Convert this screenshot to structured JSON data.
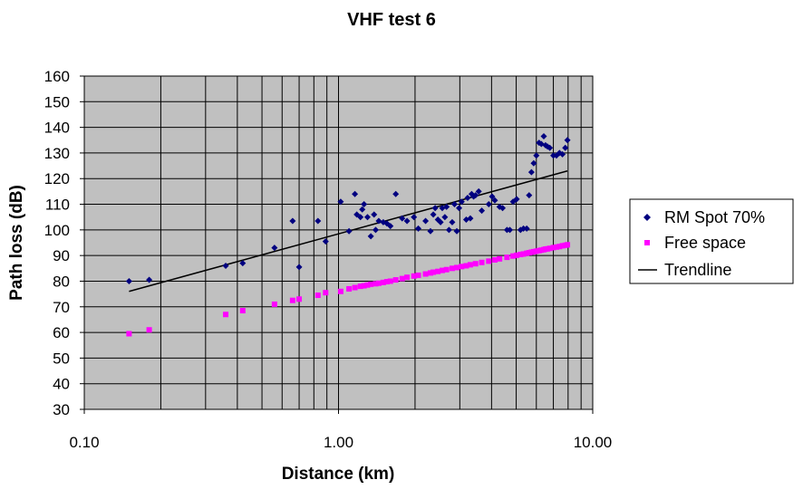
{
  "chart_data": {
    "type": "scatter",
    "title": "VHF test 6",
    "xlabel": "Distance (km)",
    "ylabel": "Path loss (dB)",
    "x_scale": "log",
    "xlim": [
      0.1,
      10
    ],
    "ylim": [
      30,
      160
    ],
    "x_tick_labels": [
      "0.10",
      "1.00",
      "10.00"
    ],
    "x_ticks": [
      0.1,
      1,
      10
    ],
    "y_ticks": [
      30,
      40,
      50,
      60,
      70,
      80,
      90,
      100,
      110,
      120,
      130,
      140,
      150,
      160
    ],
    "grid": true,
    "legend_position": "right",
    "colors": {
      "plot_background": "#c0c0c0",
      "grid": "#000000",
      "rm_spot": "#000080",
      "free_space": "#ff00ff",
      "trendline": "#000000"
    },
    "series": [
      {
        "name": "RM Spot 70%",
        "marker": "diamond",
        "points": [
          [
            0.15,
            80
          ],
          [
            0.18,
            80.5
          ],
          [
            0.36,
            86
          ],
          [
            0.42,
            87
          ],
          [
            0.56,
            93
          ],
          [
            0.66,
            103.5
          ],
          [
            0.7,
            85.5
          ],
          [
            0.83,
            103.5
          ],
          [
            0.89,
            95.5
          ],
          [
            1.02,
            111
          ],
          [
            1.1,
            99.5
          ],
          [
            1.16,
            114
          ],
          [
            1.18,
            106
          ],
          [
            1.22,
            105
          ],
          [
            1.24,
            108
          ],
          [
            1.26,
            110
          ],
          [
            1.3,
            105
          ],
          [
            1.34,
            97.5
          ],
          [
            1.38,
            106
          ],
          [
            1.4,
            100
          ],
          [
            1.44,
            103.5
          ],
          [
            1.5,
            103
          ],
          [
            1.55,
            102.5
          ],
          [
            1.6,
            101.5
          ],
          [
            1.68,
            114
          ],
          [
            1.78,
            104.5
          ],
          [
            1.86,
            103.5
          ],
          [
            1.98,
            105
          ],
          [
            2.06,
            100.5
          ],
          [
            2.2,
            103.5
          ],
          [
            2.3,
            99.5
          ],
          [
            2.36,
            106
          ],
          [
            2.4,
            108.5
          ],
          [
            2.46,
            104
          ],
          [
            2.52,
            103
          ],
          [
            2.56,
            108.5
          ],
          [
            2.62,
            105
          ],
          [
            2.66,
            109
          ],
          [
            2.72,
            100
          ],
          [
            2.8,
            103
          ],
          [
            2.86,
            110
          ],
          [
            2.92,
            99.5
          ],
          [
            2.98,
            108.5
          ],
          [
            3.05,
            111
          ],
          [
            3.18,
            104
          ],
          [
            3.22,
            112.5
          ],
          [
            3.3,
            104.5
          ],
          [
            3.34,
            114
          ],
          [
            3.4,
            113
          ],
          [
            3.46,
            113.5
          ],
          [
            3.56,
            115
          ],
          [
            3.66,
            107.5
          ],
          [
            3.9,
            110
          ],
          [
            4.02,
            113
          ],
          [
            4.12,
            111.5
          ],
          [
            4.3,
            109
          ],
          [
            4.42,
            108.5
          ],
          [
            4.6,
            100
          ],
          [
            4.72,
            100
          ],
          [
            4.86,
            111
          ],
          [
            5.02,
            112
          ],
          [
            5.2,
            100
          ],
          [
            5.34,
            100.5
          ],
          [
            5.5,
            100.5
          ],
          [
            5.62,
            113.5
          ],
          [
            5.74,
            122.5
          ],
          [
            5.86,
            126
          ],
          [
            6.0,
            129
          ],
          [
            6.15,
            134
          ],
          [
            6.28,
            133.5
          ],
          [
            6.42,
            136.5
          ],
          [
            6.52,
            133
          ],
          [
            6.64,
            132.5
          ],
          [
            6.78,
            132
          ],
          [
            7.0,
            129
          ],
          [
            7.2,
            129
          ],
          [
            7.4,
            130
          ],
          [
            7.6,
            129.5
          ],
          [
            7.8,
            132
          ],
          [
            7.95,
            135
          ]
        ]
      },
      {
        "name": "Free space",
        "marker": "square",
        "points": [
          [
            0.15,
            59.5
          ],
          [
            0.18,
            61
          ],
          [
            0.36,
            67
          ],
          [
            0.42,
            68.5
          ],
          [
            0.56,
            71
          ],
          [
            0.66,
            72.5
          ],
          [
            0.7,
            73
          ],
          [
            0.83,
            74.5
          ],
          [
            0.89,
            75.5
          ],
          [
            1.02,
            76
          ],
          [
            1.1,
            77
          ],
          [
            1.16,
            77.5
          ],
          [
            1.22,
            78
          ],
          [
            1.26,
            78.2
          ],
          [
            1.3,
            78.5
          ],
          [
            1.34,
            78.8
          ],
          [
            1.4,
            79
          ],
          [
            1.44,
            79.2
          ],
          [
            1.5,
            79.5
          ],
          [
            1.55,
            79.8
          ],
          [
            1.6,
            80
          ],
          [
            1.68,
            80.5
          ],
          [
            1.78,
            81
          ],
          [
            1.86,
            81.5
          ],
          [
            1.98,
            82
          ],
          [
            2.06,
            82.3
          ],
          [
            2.2,
            82.8
          ],
          [
            2.3,
            83.2
          ],
          [
            2.36,
            83.5
          ],
          [
            2.46,
            83.8
          ],
          [
            2.56,
            84.2
          ],
          [
            2.66,
            84.5
          ],
          [
            2.8,
            85
          ],
          [
            2.92,
            85.3
          ],
          [
            3.05,
            85.7
          ],
          [
            3.18,
            86
          ],
          [
            3.3,
            86.4
          ],
          [
            3.46,
            86.8
          ],
          [
            3.66,
            87.3
          ],
          [
            3.9,
            87.8
          ],
          [
            4.12,
            88.3
          ],
          [
            4.3,
            88.7
          ],
          [
            4.6,
            89.3
          ],
          [
            4.86,
            89.8
          ],
          [
            5.02,
            90.1
          ],
          [
            5.2,
            90.4
          ],
          [
            5.34,
            90.6
          ],
          [
            5.5,
            90.9
          ],
          [
            5.62,
            91.1
          ],
          [
            5.74,
            91.3
          ],
          [
            5.86,
            91.5
          ],
          [
            6.0,
            91.7
          ],
          [
            6.15,
            91.9
          ],
          [
            6.28,
            92.1
          ],
          [
            6.42,
            92.3
          ],
          [
            6.52,
            92.5
          ],
          [
            6.64,
            92.6
          ],
          [
            6.78,
            92.8
          ],
          [
            7.0,
            93.1
          ],
          [
            7.2,
            93.3
          ],
          [
            7.4,
            93.5
          ],
          [
            7.6,
            93.8
          ],
          [
            7.8,
            94
          ],
          [
            7.95,
            94.2
          ]
        ]
      },
      {
        "name": "Trendline",
        "marker": "line",
        "points": [
          [
            0.15,
            76
          ],
          [
            7.95,
            123
          ]
        ]
      }
    ]
  }
}
